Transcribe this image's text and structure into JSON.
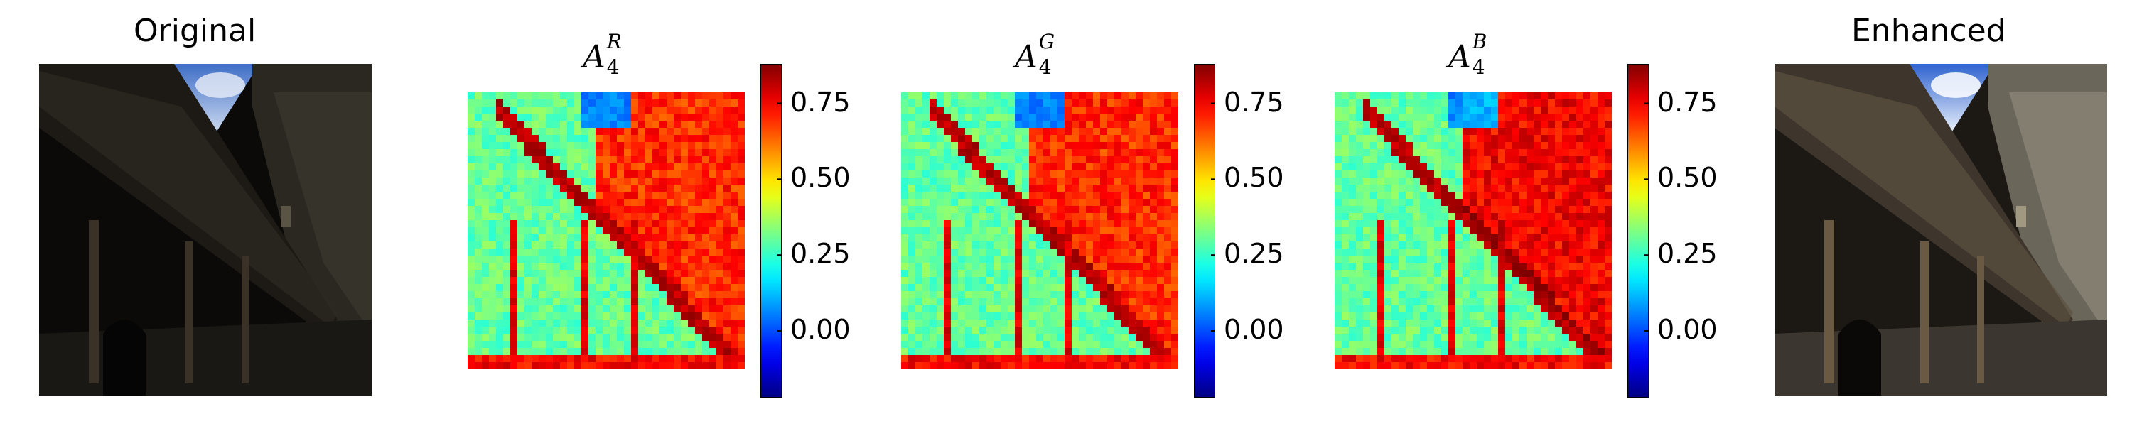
{
  "panels": [
    {
      "type": "photo",
      "title": "Original"
    },
    {
      "type": "heatmap",
      "title_symbol": "A",
      "title_sub": "4",
      "title_sup": "R"
    },
    {
      "type": "heatmap",
      "title_symbol": "A",
      "title_sub": "4",
      "title_sup": "G"
    },
    {
      "type": "heatmap",
      "title_symbol": "A",
      "title_sub": "4",
      "title_sup": "B"
    },
    {
      "type": "photo",
      "title": "Enhanced"
    }
  ],
  "colorbar": {
    "colormap": "jet",
    "ticks": [
      "0.75",
      "0.50",
      "0.25",
      "0.00"
    ],
    "range": [
      -0.22,
      0.88
    ]
  }
}
